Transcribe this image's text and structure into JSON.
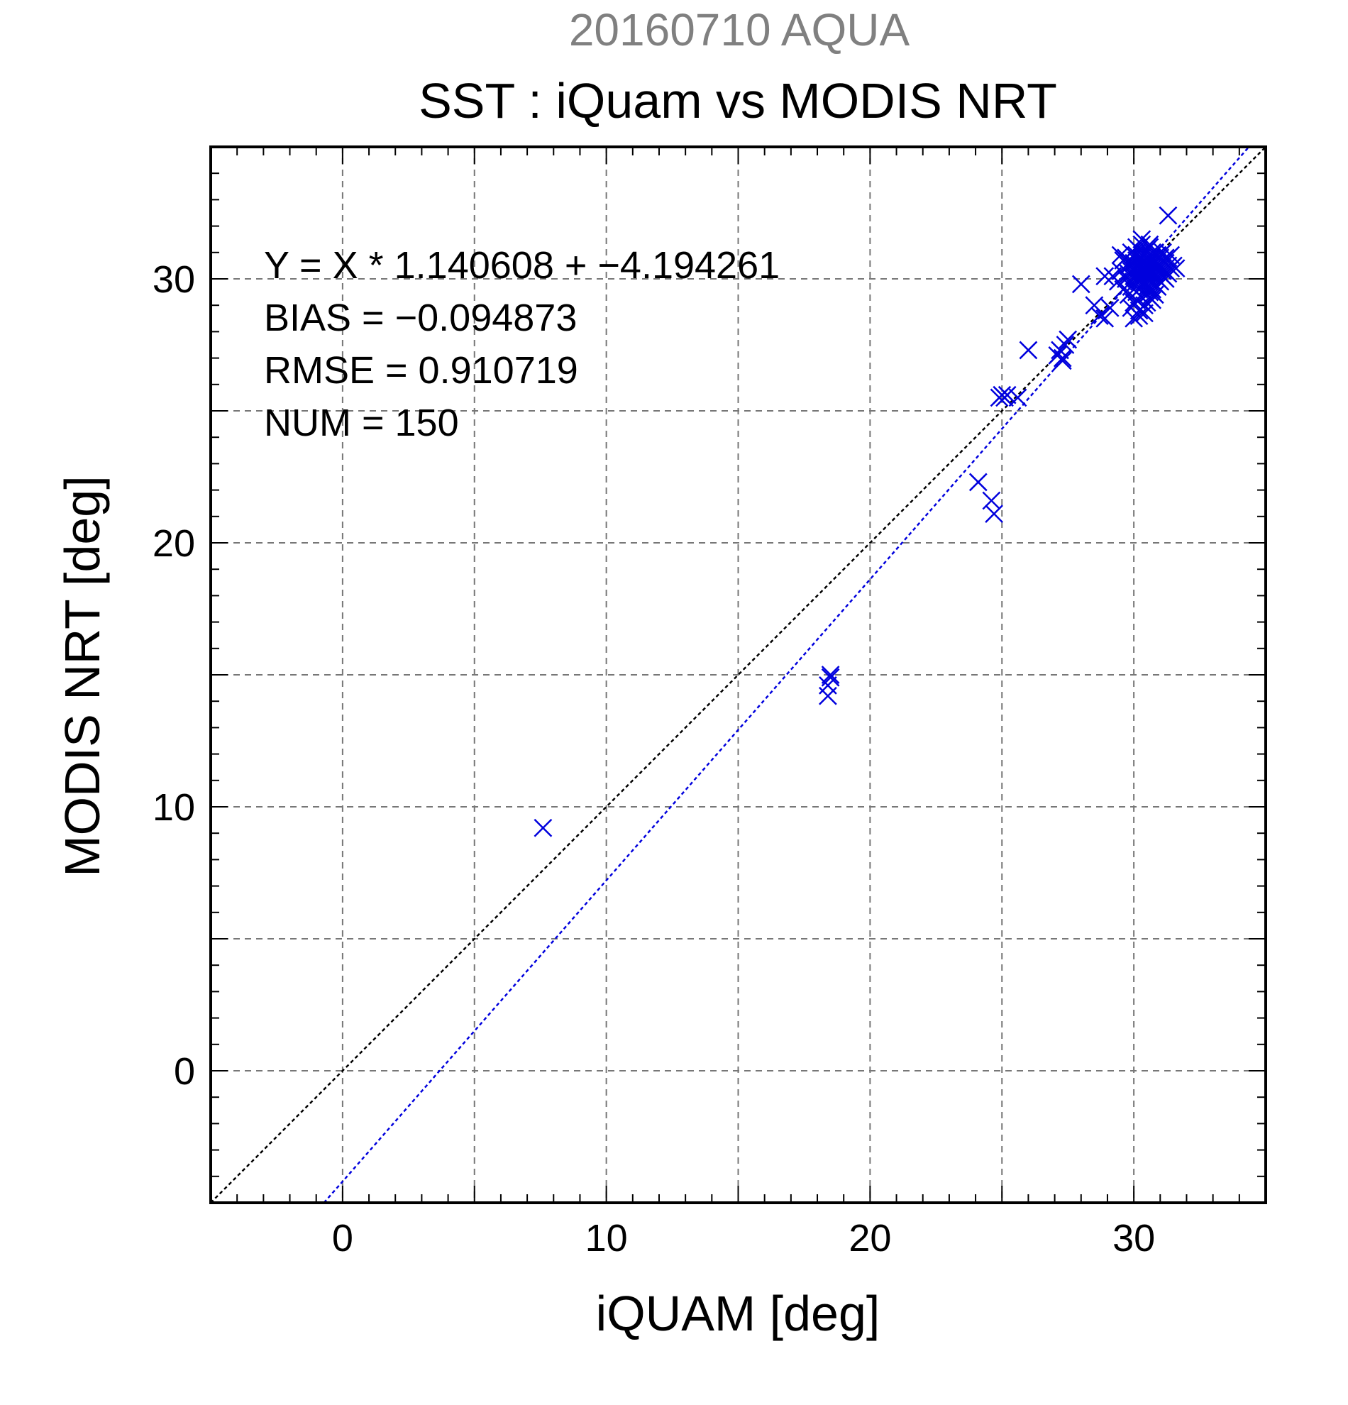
{
  "chart_data": {
    "type": "scatter",
    "supertitle": "20160710 AQUA",
    "title": "SST : iQuam vs MODIS NRT",
    "xlabel": "iQUAM [deg]",
    "ylabel": "MODIS NRT [deg]",
    "xlim": [
      -5,
      35
    ],
    "ylim": [
      -5,
      35
    ],
    "xticks": [
      0,
      10,
      20,
      30
    ],
    "yticks": [
      0,
      10,
      20,
      30
    ],
    "grid": true,
    "annotations": [
      "Y = X * 1.140608 + −4.194261",
      "BIAS = −0.094873",
      "RMSE = 0.910719",
      "NUM = 150"
    ],
    "regression": {
      "slope": 1.140608,
      "intercept": -4.194261
    },
    "colors": {
      "points": "#0000dd",
      "fit_line": "#0000dd",
      "one_to_one": "#000000",
      "supertitle": "#808080"
    },
    "marker": "x",
    "points": [
      [
        7.6,
        9.2
      ],
      [
        18.4,
        14.2
      ],
      [
        18.4,
        14.6
      ],
      [
        18.5,
        14.9
      ],
      [
        18.5,
        15.0
      ],
      [
        24.1,
        22.3
      ],
      [
        24.6,
        21.6
      ],
      [
        24.7,
        21.1
      ],
      [
        24.9,
        25.5
      ],
      [
        25.0,
        25.6
      ],
      [
        25.1,
        25.5
      ],
      [
        25.2,
        25.6
      ],
      [
        25.6,
        25.5
      ],
      [
        26.0,
        27.3
      ],
      [
        27.1,
        27.1
      ],
      [
        27.2,
        27.3
      ],
      [
        27.3,
        26.9
      ],
      [
        27.3,
        27.0
      ],
      [
        27.4,
        27.5
      ],
      [
        27.5,
        27.7
      ],
      [
        28.0,
        29.8
      ],
      [
        28.5,
        29.0
      ],
      [
        28.7,
        28.6
      ],
      [
        28.9,
        28.5
      ],
      [
        28.9,
        30.1
      ],
      [
        29.1,
        28.9
      ],
      [
        29.2,
        30.1
      ],
      [
        29.4,
        29.9
      ],
      [
        29.5,
        30.3
      ],
      [
        29.6,
        29.6
      ],
      [
        29.7,
        30.0
      ],
      [
        29.7,
        30.8
      ],
      [
        29.8,
        29.4
      ],
      [
        29.8,
        30.2
      ],
      [
        29.9,
        29.7
      ],
      [
        29.9,
        30.6
      ],
      [
        29.9,
        31.0
      ],
      [
        30.0,
        28.5
      ],
      [
        30.0,
        29.1
      ],
      [
        30.0,
        29.8
      ],
      [
        30.0,
        30.1
      ],
      [
        30.0,
        30.4
      ],
      [
        30.0,
        30.9
      ],
      [
        30.1,
        29.5
      ],
      [
        30.1,
        30.0
      ],
      [
        30.1,
        30.3
      ],
      [
        30.1,
        30.7
      ],
      [
        30.1,
        31.2
      ],
      [
        30.1,
        29.2
      ],
      [
        30.2,
        28.8
      ],
      [
        30.2,
        29.6
      ],
      [
        30.2,
        29.9
      ],
      [
        30.2,
        30.2
      ],
      [
        30.2,
        30.5
      ],
      [
        30.2,
        30.8
      ],
      [
        30.2,
        31.1
      ],
      [
        30.2,
        30.0
      ],
      [
        30.3,
        29.3
      ],
      [
        30.3,
        29.7
      ],
      [
        30.3,
        30.0
      ],
      [
        30.3,
        30.3
      ],
      [
        30.3,
        30.6
      ],
      [
        30.3,
        30.9
      ],
      [
        30.3,
        31.3
      ],
      [
        30.3,
        30.4
      ],
      [
        30.4,
        29.0
      ],
      [
        30.4,
        29.5
      ],
      [
        30.4,
        29.8
      ],
      [
        30.4,
        30.1
      ],
      [
        30.4,
        30.4
      ],
      [
        30.4,
        30.7
      ],
      [
        30.4,
        31.0
      ],
      [
        30.4,
        29.9
      ],
      [
        30.5,
        29.4
      ],
      [
        30.5,
        29.7
      ],
      [
        30.5,
        30.0
      ],
      [
        30.5,
        30.2
      ],
      [
        30.5,
        30.5
      ],
      [
        30.5,
        30.8
      ],
      [
        30.5,
        31.1
      ],
      [
        30.5,
        30.3
      ],
      [
        30.6,
        29.5
      ],
      [
        30.6,
        29.9
      ],
      [
        30.6,
        30.2
      ],
      [
        30.6,
        30.6
      ],
      [
        30.6,
        30.9
      ],
      [
        30.6,
        31.2
      ],
      [
        30.6,
        30.4
      ],
      [
        30.7,
        29.6
      ],
      [
        30.7,
        29.9
      ],
      [
        30.7,
        30.1
      ],
      [
        30.7,
        30.5
      ],
      [
        30.7,
        30.8
      ],
      [
        30.7,
        31.0
      ],
      [
        30.7,
        30.3
      ],
      [
        30.8,
        29.4
      ],
      [
        30.8,
        29.8
      ],
      [
        30.8,
        30.1
      ],
      [
        30.8,
        30.4
      ],
      [
        30.8,
        30.7
      ],
      [
        30.8,
        31.0
      ],
      [
        30.8,
        30.2
      ],
      [
        30.9,
        29.7
      ],
      [
        30.9,
        30.0
      ],
      [
        30.9,
        30.3
      ],
      [
        30.9,
        30.6
      ],
      [
        30.9,
        30.9
      ],
      [
        30.9,
        30.5
      ],
      [
        31.0,
        29.9
      ],
      [
        31.0,
        30.2
      ],
      [
        31.0,
        30.5
      ],
      [
        31.0,
        30.8
      ],
      [
        31.0,
        30.4
      ],
      [
        31.1,
        30.1
      ],
      [
        31.1,
        30.4
      ],
      [
        31.1,
        30.7
      ],
      [
        31.1,
        30.3
      ],
      [
        31.2,
        30.0
      ],
      [
        31.2,
        30.3
      ],
      [
        31.2,
        30.6
      ],
      [
        31.3,
        30.2
      ],
      [
        31.3,
        30.5
      ],
      [
        31.4,
        30.4
      ],
      [
        29.8,
        30.5
      ],
      [
        29.9,
        30.3
      ],
      [
        30.0,
        30.6
      ],
      [
        30.1,
        30.9
      ],
      [
        30.2,
        30.1
      ],
      [
        30.3,
        30.8
      ],
      [
        30.4,
        30.3
      ],
      [
        30.5,
        30.6
      ],
      [
        30.6,
        30.7
      ],
      [
        30.7,
        30.6
      ],
      [
        30.8,
        30.6
      ],
      [
        30.9,
        30.4
      ],
      [
        30.4,
        28.7
      ],
      [
        30.5,
        29.1
      ],
      [
        30.6,
        29.3
      ],
      [
        30.7,
        29.2
      ],
      [
        30.2,
        28.6
      ],
      [
        29.9,
        28.9
      ],
      [
        31.2,
        30.8
      ],
      [
        31.5,
        30.5
      ],
      [
        31.1,
        31.0
      ],
      [
        30.6,
        31.3
      ],
      [
        30.3,
        31.5
      ],
      [
        31.4,
        30.9
      ],
      [
        31.6,
        30.4
      ],
      [
        29.6,
        30.7
      ],
      [
        29.5,
        30.9
      ],
      [
        31.3,
        32.4
      ]
    ]
  }
}
